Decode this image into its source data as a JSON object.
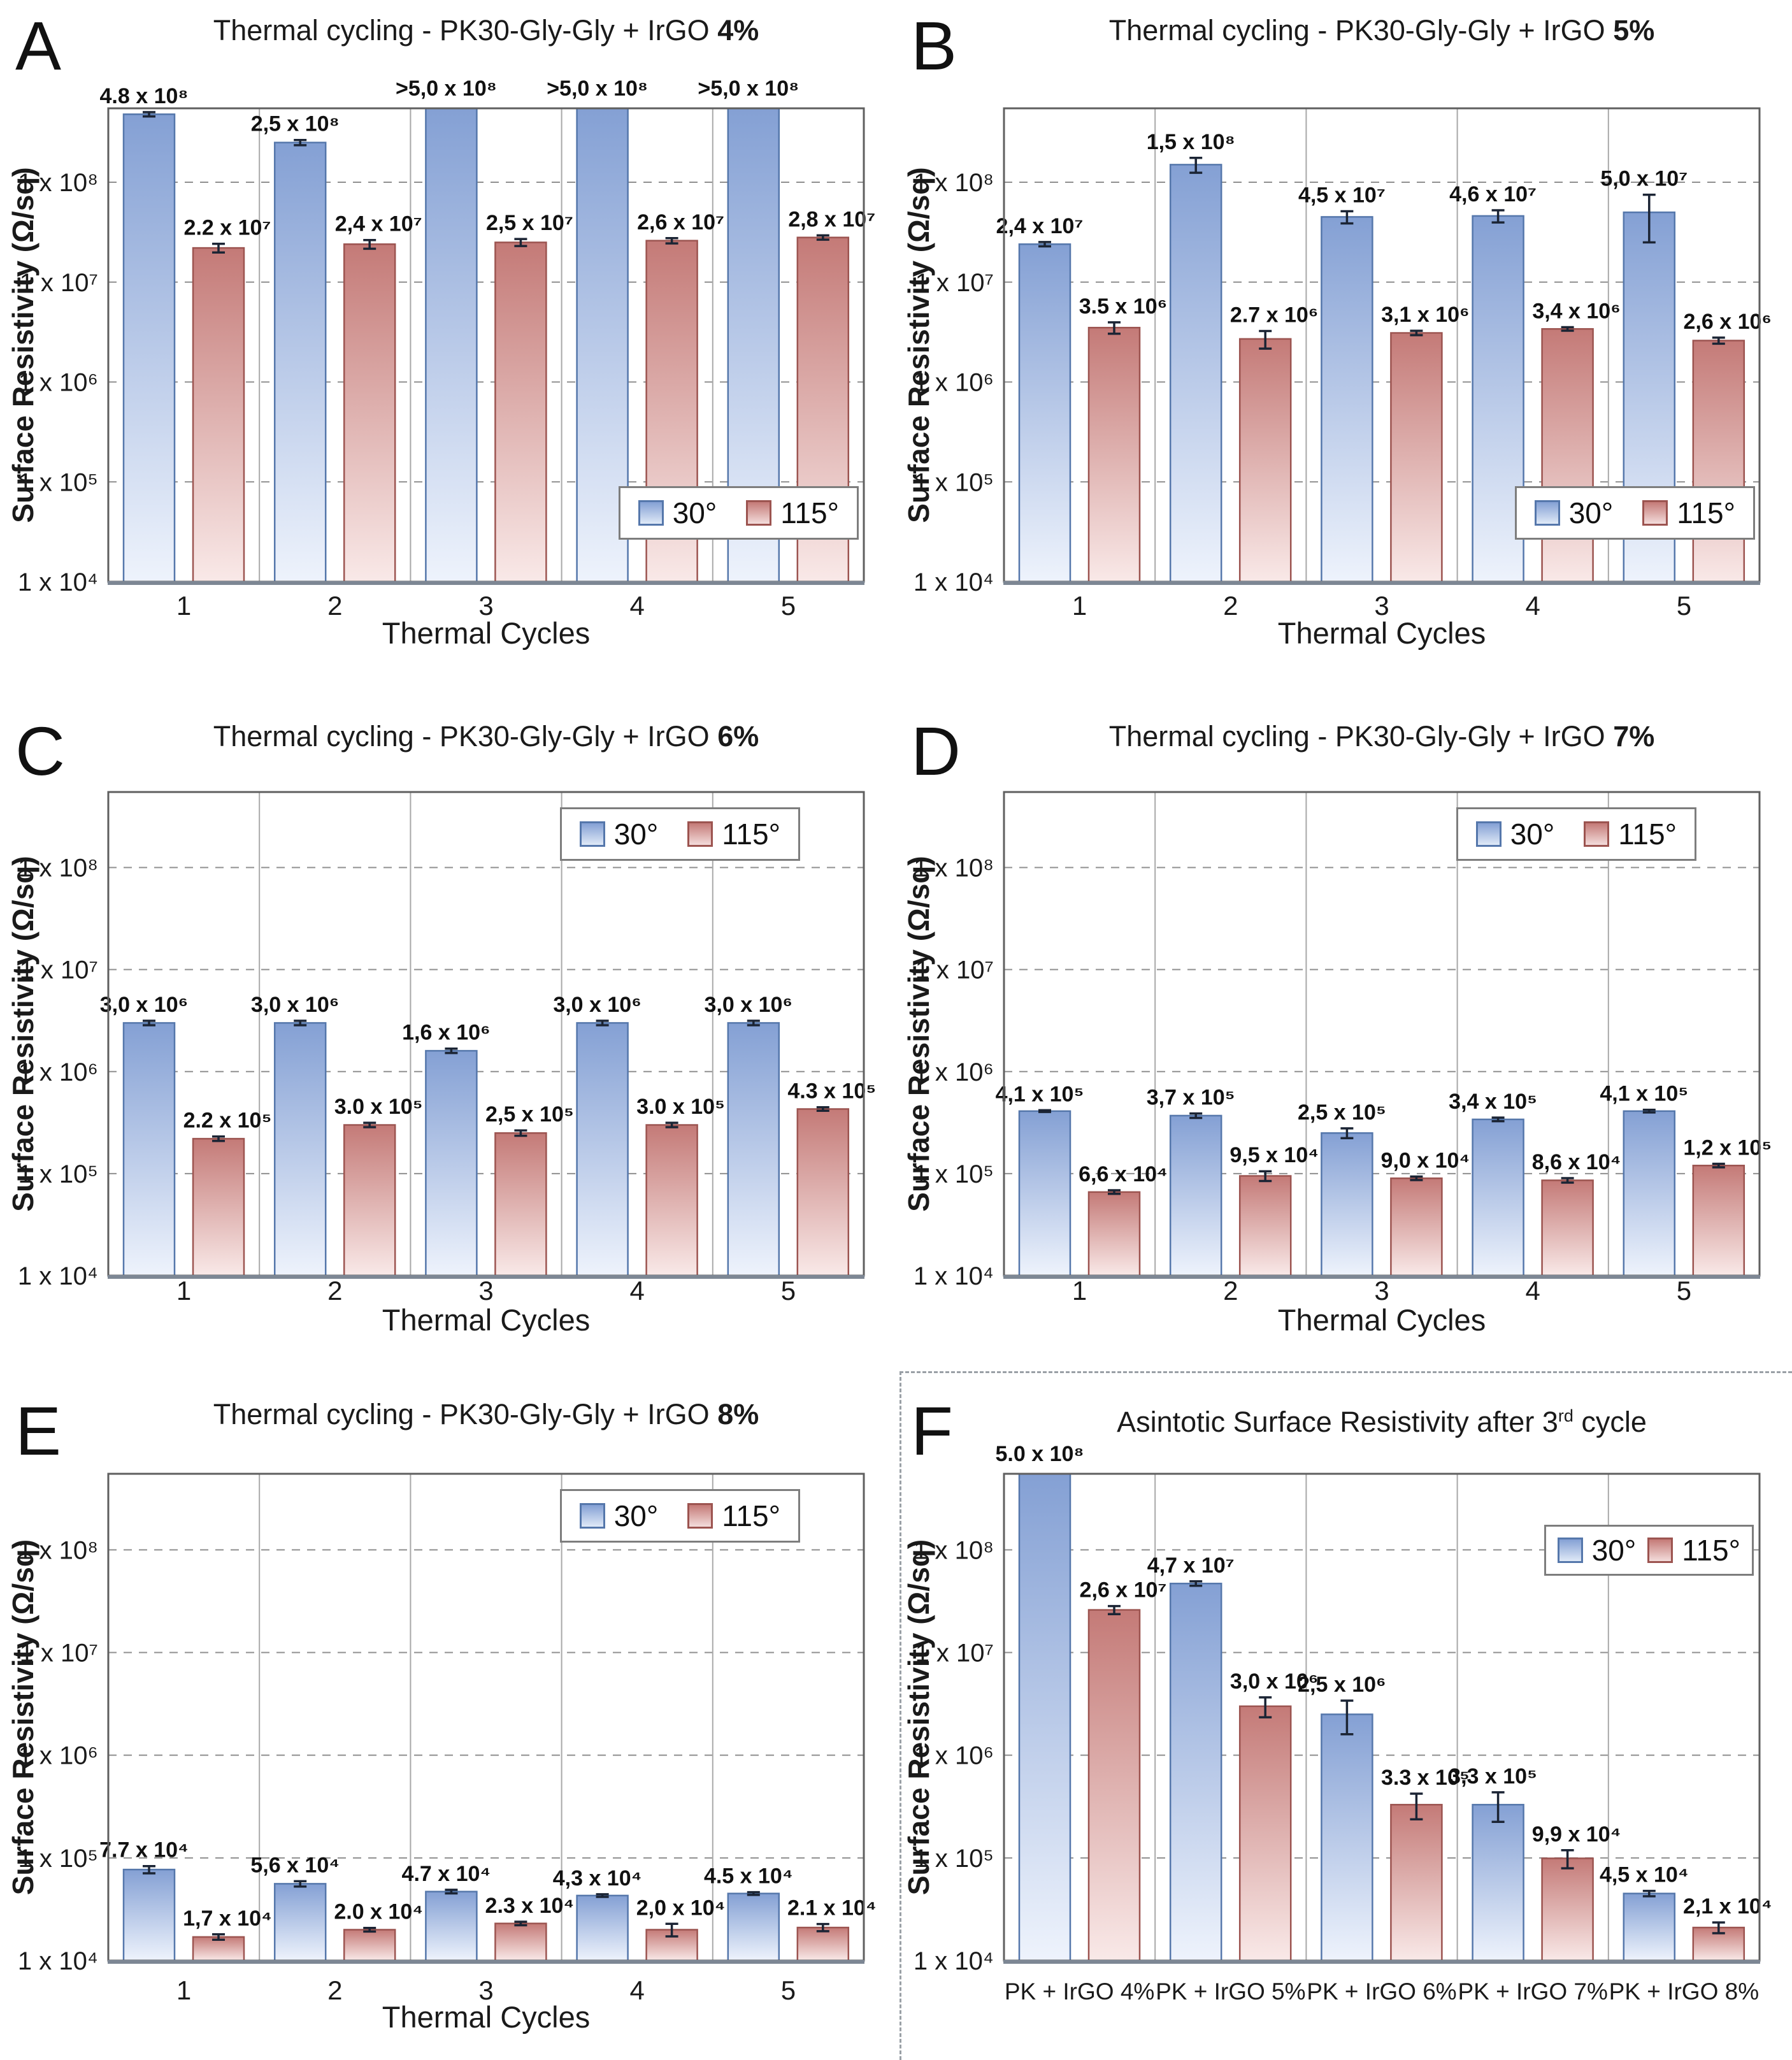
{
  "figure": {
    "xlabel": "Thermal Cycles",
    "legend": {
      "labels": [
        "30°",
        "115°"
      ]
    },
    "y_ticks": [
      8,
      7,
      6,
      5,
      4
    ],
    "y_axis": {
      "min_exp": 4,
      "max_value": 550000000.0
    },
    "colors": {
      "blue_top": "#84a0d4",
      "blue_bottom": "#eef3fc",
      "blue_border": "#5577ab",
      "red_top": "#c47a77",
      "red_bottom": "#f9e9e8",
      "red_border": "#9c5450",
      "grid": "#8f8f8f",
      "separator": "#a8a8a8",
      "plot_border": "#5f5f5f",
      "axis_line": "#7d8794",
      "error": "#1b2434",
      "text": "#1a1a1a"
    }
  },
  "chart_data": [
    {
      "panel": "A",
      "type": "bar",
      "title": "Thermal cycling - PK30-Gly-Gly + IrGO",
      "title_bold": "4%",
      "ylabel": "Surface Resistivity (Ω/sq)",
      "xlabel": "Thermal Cycles",
      "categories": [
        "1",
        "2",
        "3",
        "4",
        "5"
      ],
      "legend_position": "bottom-right",
      "series": [
        {
          "name": "30°",
          "color": "blue",
          "values": [
            480000000.0,
            250000000.0,
            500000000.0,
            500000000.0,
            500000000.0
          ],
          "clipped": [
            false,
            false,
            true,
            true,
            true
          ],
          "labels": [
            "4.8 x 10⁸",
            "2,5 x 10⁸",
            ">5,0 x 10⁸",
            ">5,0 x 10⁸",
            ">5,0 x 10⁸"
          ],
          "err": [
            0.05,
            0.06,
            0,
            0,
            0
          ]
        },
        {
          "name": "115°",
          "color": "red",
          "values": [
            22000000.0,
            24000000.0,
            25000000.0,
            26000000.0,
            28000000.0
          ],
          "clipped": [
            false,
            false,
            false,
            false,
            false
          ],
          "labels": [
            "2.2 x 10⁷",
            "2,4 x 10⁷",
            "2,5 x 10⁷",
            "2,6 x 10⁷",
            "2,8 x 10⁷"
          ],
          "err": [
            0.1,
            0.1,
            0.08,
            0.06,
            0.05
          ]
        }
      ]
    },
    {
      "panel": "B",
      "type": "bar",
      "title": "Thermal cycling - PK30-Gly-Gly + IrGO",
      "title_bold": "5%",
      "ylabel": "Surface Resistivity (Ω/sq)",
      "xlabel": "Thermal Cycles",
      "categories": [
        "1",
        "2",
        "3",
        "4",
        "5"
      ],
      "legend_position": "bottom-right",
      "series": [
        {
          "name": "30°",
          "color": "blue",
          "values": [
            24000000.0,
            150000000.0,
            45000000.0,
            46000000.0,
            50000000.0
          ],
          "clipped": [
            false,
            false,
            false,
            false,
            false
          ],
          "labels": [
            "2,4 x 10⁷",
            "1,5 x 10⁸",
            "4,5 x 10⁷",
            "4,6 x 10⁷",
            "5,0 x 10⁷"
          ],
          "err": [
            0.05,
            0.17,
            0.14,
            0.14,
            0.5
          ]
        },
        {
          "name": "115°",
          "color": "red",
          "values": [
            3500000.0,
            2700000.0,
            3100000.0,
            3400000.0,
            2600000.0
          ],
          "clipped": [
            false,
            false,
            false,
            false,
            false
          ],
          "labels": [
            "3.5 x 10⁶",
            "2.7 x 10⁶",
            "3,1 x 10⁶",
            "3,4 x 10⁶",
            "2,6 x 10⁶"
          ],
          "err": [
            0.13,
            0.2,
            0.05,
            0.04,
            0.07
          ]
        }
      ]
    },
    {
      "panel": "C",
      "type": "bar",
      "title": "Thermal cycling - PK30-Gly-Gly + IrGO",
      "title_bold": "6%",
      "ylabel": "Surface Resistivity (Ω/sq)",
      "xlabel": "Thermal Cycles",
      "categories": [
        "1",
        "2",
        "3",
        "4",
        "5"
      ],
      "legend_position": "top-right",
      "series": [
        {
          "name": "30°",
          "color": "blue",
          "values": [
            3000000.0,
            3000000.0,
            1600000.0,
            3000000.0,
            3000000.0
          ],
          "clipped": [
            false,
            false,
            false,
            false,
            false
          ],
          "labels": [
            "3,0 x 10⁶",
            "3,0 x 10⁶",
            "1,6 x 10⁶",
            "3,0 x 10⁶",
            "3,0 x 10⁶"
          ],
          "err": [
            0.05,
            0.05,
            0.05,
            0.05,
            0.05
          ]
        },
        {
          "name": "115°",
          "color": "red",
          "values": [
            220000.0,
            300000.0,
            250000.0,
            300000.0,
            430000.0
          ],
          "clipped": [
            false,
            false,
            false,
            false,
            false
          ],
          "labels": [
            "2.2 x 10⁵",
            "3.0 x 10⁵",
            "2,5 x 10⁵",
            "3.0 x 10⁵",
            "4.3 x 10⁵"
          ],
          "err": [
            0.05,
            0.05,
            0.06,
            0.05,
            0.04
          ]
        }
      ]
    },
    {
      "panel": "D",
      "type": "bar",
      "title": "Thermal cycling - PK30-Gly-Gly + IrGO",
      "title_bold": "7%",
      "ylabel": "Surface Resistivity (Ω/sq)",
      "xlabel": "Thermal Cycles",
      "categories": [
        "1",
        "2",
        "3",
        "4",
        "5"
      ],
      "legend_position": "top-right",
      "series": [
        {
          "name": "30°",
          "color": "blue",
          "values": [
            410000.0,
            370000.0,
            250000.0,
            340000.0,
            410000.0
          ],
          "clipped": [
            false,
            false,
            false,
            false,
            false
          ],
          "labels": [
            "4,1 x 10⁵",
            "3,7 x 10⁵",
            "2,5 x 10⁵",
            "3,4 x 10⁵",
            "4,1 x 10⁵"
          ],
          "err": [
            0.02,
            0.05,
            0.11,
            0.04,
            0.03
          ]
        },
        {
          "name": "115°",
          "color": "red",
          "values": [
            66000.0,
            95000.0,
            90000.0,
            86000.0,
            120000.0
          ],
          "clipped": [
            false,
            false,
            false,
            false,
            false
          ],
          "labels": [
            "6,6 x 10⁴",
            "9,5 x 10⁴",
            "9,0 x 10⁴",
            "8,6 x 10⁴",
            "1,2 x 10⁵"
          ],
          "err": [
            0.04,
            0.11,
            0.04,
            0.05,
            0.04
          ]
        }
      ]
    },
    {
      "panel": "E",
      "type": "bar",
      "title": "Thermal cycling - PK30-Gly-Gly + IrGO",
      "title_bold": "8%",
      "ylabel": "Surface Resistivity (Ω/sq)",
      "xlabel": "Thermal Cycles",
      "categories": [
        "1",
        "2",
        "3",
        "4",
        "5"
      ],
      "legend_position": "top-right",
      "series": [
        {
          "name": "30°",
          "color": "blue",
          "values": [
            77000.0,
            56000.0,
            47000.0,
            43000.0,
            45000.0
          ],
          "clipped": [
            false,
            false,
            false,
            false,
            false
          ],
          "labels": [
            "7.7 x 10⁴",
            "5,6 x 10⁴",
            "4.7 x 10⁴",
            "4,3 x 10⁴",
            "4.5 x 10⁴"
          ],
          "err": [
            0.08,
            0.06,
            0.04,
            0.03,
            0.03
          ]
        },
        {
          "name": "115°",
          "color": "red",
          "values": [
            17000.0,
            20000.0,
            23000.0,
            20000.0,
            21000.0
          ],
          "clipped": [
            false,
            false,
            false,
            false,
            false
          ],
          "labels": [
            "1,7 x 10⁴",
            "2.0 x 10⁴",
            "2.3 x 10⁴",
            "2,0 x 10⁴",
            "2.1 x 10⁴"
          ],
          "err": [
            0.06,
            0.04,
            0.04,
            0.14,
            0.08
          ]
        }
      ]
    },
    {
      "panel": "F",
      "type": "bar",
      "title": "Asintotic Surface Resistivity after 3",
      "title_sup": "rd",
      "title_suffix": " cycle",
      "ylabel": "Surface Resistivity  (Ω/sq)",
      "xlabel": "",
      "categories": [
        "PK + IrGO 4%",
        "PK + IrGO 5%",
        "PK + IrGO 6%",
        "PK + IrGO 7%",
        "PK + IrGO 8%"
      ],
      "legend_position": "top-right-compact",
      "dashed_border": true,
      "series": [
        {
          "name": "30°",
          "color": "blue",
          "values": [
            500000000.0,
            47000000.0,
            2500000.0,
            330000.0,
            45000.0
          ],
          "clipped": [
            true,
            false,
            false,
            false,
            false
          ],
          "labels": [
            "5.0 x 10⁸",
            "4,7 x 10⁷",
            "2,5 x 10⁶",
            "3,3 x 10⁵",
            "4,5 x 10⁴"
          ],
          "err": [
            0,
            0.05,
            0.36,
            0.32,
            0.06
          ]
        },
        {
          "name": "115°",
          "color": "red",
          "values": [
            26000000.0,
            3000000.0,
            330000.0,
            99000.0,
            21000.0
          ],
          "clipped": [
            false,
            false,
            false,
            false,
            false
          ],
          "labels": [
            "2,6 x 10⁷",
            "3,0 x 10⁶",
            "3.3 x 10⁵",
            "9,9 x 10⁴",
            "2,1 x 10⁴"
          ],
          "err": [
            0.09,
            0.22,
            0.28,
            0.2,
            0.12
          ]
        }
      ]
    }
  ]
}
